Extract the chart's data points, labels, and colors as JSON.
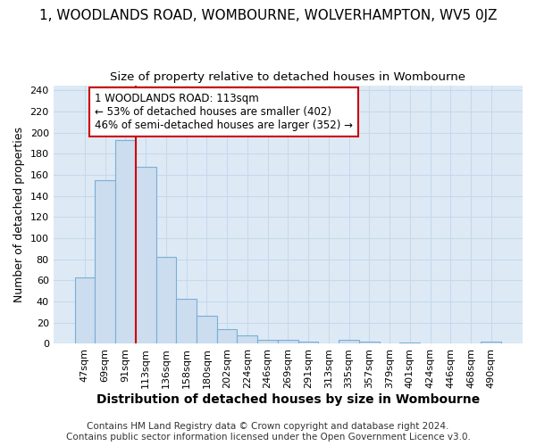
{
  "title": "1, WOODLANDS ROAD, WOMBOURNE, WOLVERHAMPTON, WV5 0JZ",
  "subtitle": "Size of property relative to detached houses in Wombourne",
  "xlabel": "Distribution of detached houses by size in Wombourne",
  "ylabel": "Number of detached properties",
  "footer_line1": "Contains HM Land Registry data © Crown copyright and database right 2024.",
  "footer_line2": "Contains public sector information licensed under the Open Government Licence v3.0.",
  "bin_labels": [
    "47sqm",
    "69sqm",
    "91sqm",
    "113sqm",
    "136sqm",
    "158sqm",
    "180sqm",
    "202sqm",
    "224sqm",
    "246sqm",
    "269sqm",
    "291sqm",
    "313sqm",
    "335sqm",
    "357sqm",
    "379sqm",
    "401sqm",
    "424sqm",
    "446sqm",
    "468sqm",
    "490sqm"
  ],
  "bar_values": [
    63,
    155,
    193,
    168,
    82,
    43,
    27,
    14,
    8,
    4,
    4,
    2,
    0,
    4,
    2,
    0,
    1,
    0,
    0,
    0,
    2
  ],
  "bar_color": "#ccddf0",
  "bar_edge_color": "#7aafd4",
  "annotation_line1": "1 WOODLANDS ROAD: 113sqm",
  "annotation_line2": "← 53% of detached houses are smaller (402)",
  "annotation_line3": "46% of semi-detached houses are larger (352) →",
  "vline_color": "#cc0000",
  "vline_x": 2.5,
  "ylim_max": 245,
  "yticks": [
    0,
    20,
    40,
    60,
    80,
    100,
    120,
    140,
    160,
    180,
    200,
    220,
    240
  ],
  "grid_color": "#c8d8ec",
  "bg_color": "#ddeaf6",
  "title_fontsize": 11,
  "subtitle_fontsize": 9.5,
  "ylabel_fontsize": 9,
  "xlabel_fontsize": 10,
  "tick_fontsize": 8,
  "annot_fontsize": 8.5,
  "footer_fontsize": 7.5
}
